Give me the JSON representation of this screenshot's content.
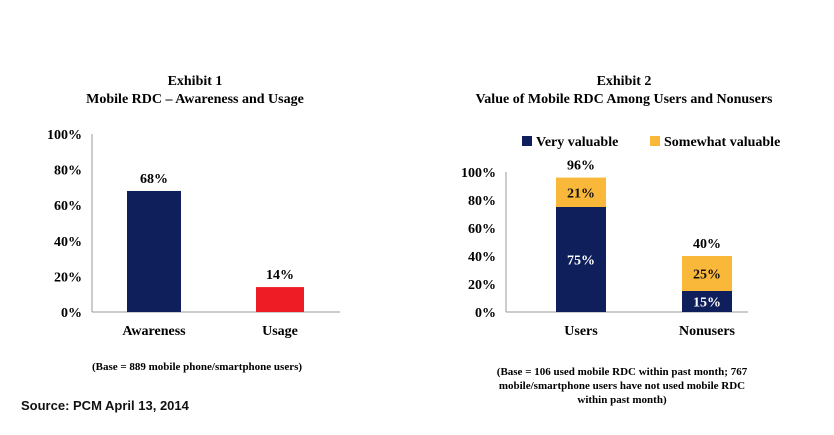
{
  "source": "Source: PCM April 13, 2014",
  "chart_data": [
    {
      "type": "bar",
      "title": "Exhibit 1",
      "subtitle": "Mobile RDC – Awareness and Usage",
      "categories": [
        "Awareness",
        "Usage"
      ],
      "values": [
        68,
        14
      ],
      "data_labels": [
        "68%",
        "14%"
      ],
      "colors": [
        "#0f1f5c",
        "#ee1c25"
      ],
      "ylim": [
        0,
        100
      ],
      "yticks": [
        "0%",
        "20%",
        "40%",
        "60%",
        "80%",
        "100%"
      ],
      "ytick_values": [
        0,
        20,
        40,
        60,
        80,
        100
      ],
      "grid": false,
      "note": "(Base = 889 mobile phone/smartphone users)"
    },
    {
      "type": "bar",
      "stacked": true,
      "title": "Exhibit 2",
      "subtitle": "Value of Mobile RDC Among Users and Nonusers",
      "categories": [
        "Users",
        "Nonusers"
      ],
      "series": [
        {
          "name": "Very valuable",
          "values": [
            75,
            15
          ],
          "labels": [
            "75%",
            "15%"
          ],
          "color": "#0f1f5c"
        },
        {
          "name": "Somewhat valuable",
          "values": [
            21,
            25
          ],
          "labels": [
            "21%",
            "25%"
          ],
          "color": "#f9b83a"
        }
      ],
      "totals": [
        96,
        40
      ],
      "total_labels": [
        "96%",
        "40%"
      ],
      "ylim": [
        0,
        100
      ],
      "yticks": [
        "0%",
        "20%",
        "40%",
        "60%",
        "80%",
        "100%"
      ],
      "ytick_values": [
        0,
        20,
        40,
        60,
        80,
        100
      ],
      "legend": "top",
      "grid": false,
      "note_lines": [
        "(Base = 106 used mobile RDC within past month; 767",
        "mobile/smartphone users have not used mobile RDC",
        "within past month)"
      ]
    }
  ]
}
